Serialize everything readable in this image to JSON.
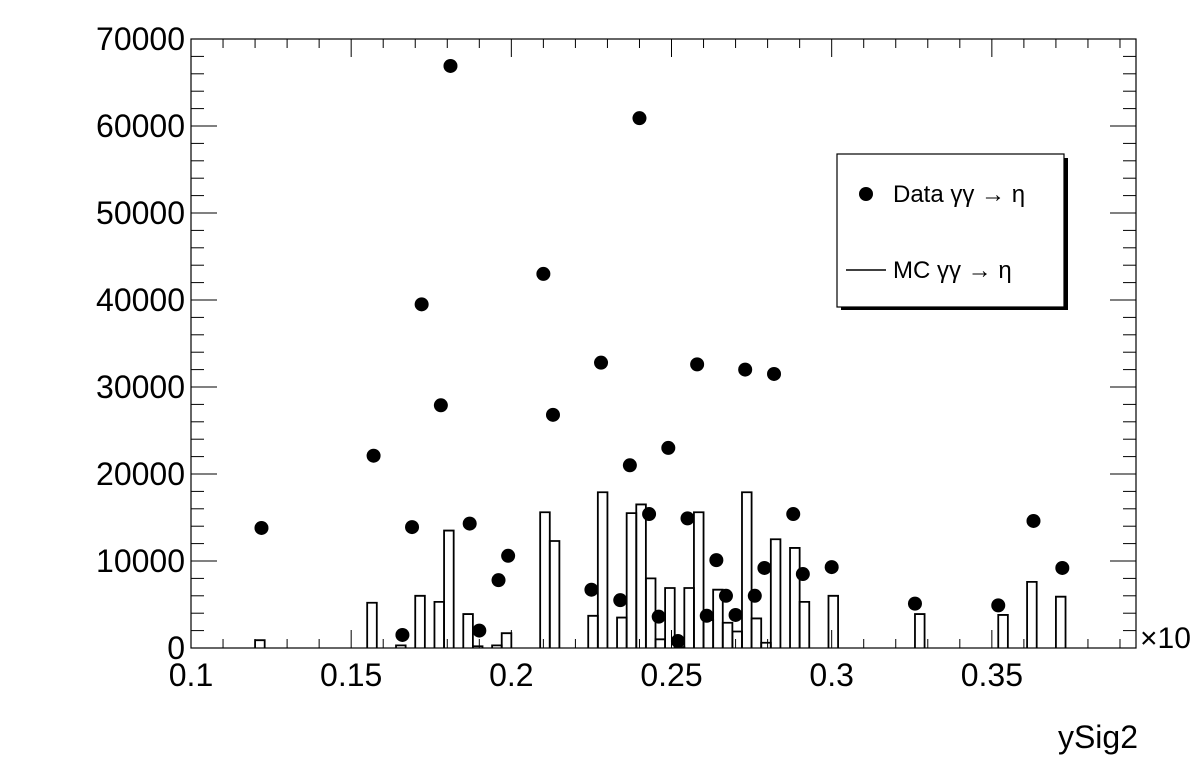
{
  "chart_data": {
    "type": "scatter",
    "title": "",
    "xlabel": "ySig2",
    "ylabel": "",
    "xlim": [
      0.1,
      0.395
    ],
    "ylim": [
      0,
      70000
    ],
    "x_exponent_label": "×10",
    "x_ticks": [
      "0.1",
      "0.15",
      "0.2",
      "0.25",
      "0.3",
      "0.35"
    ],
    "y_ticks": [
      "0",
      "10000",
      "20000",
      "30000",
      "40000",
      "50000",
      "60000",
      "70000"
    ],
    "legend": {
      "position": "top-right",
      "entries": [
        "Data γγ → η",
        "MC γγ → η"
      ]
    },
    "series": [
      {
        "name": "Data γγ → η",
        "style": "markers",
        "color": "#000000",
        "points": [
          [
            0.122,
            13800
          ],
          [
            0.157,
            22100
          ],
          [
            0.166,
            1500
          ],
          [
            0.169,
            13900
          ],
          [
            0.172,
            39500
          ],
          [
            0.178,
            27900
          ],
          [
            0.181,
            66900
          ],
          [
            0.187,
            14300
          ],
          [
            0.19,
            2000
          ],
          [
            0.196,
            7800
          ],
          [
            0.199,
            10600
          ],
          [
            0.21,
            43000
          ],
          [
            0.213,
            26800
          ],
          [
            0.225,
            6700
          ],
          [
            0.228,
            32800
          ],
          [
            0.234,
            5500
          ],
          [
            0.237,
            21000
          ],
          [
            0.24,
            60900
          ],
          [
            0.243,
            15400
          ],
          [
            0.246,
            3600
          ],
          [
            0.249,
            23000
          ],
          [
            0.252,
            800
          ],
          [
            0.255,
            14900
          ],
          [
            0.258,
            32600
          ],
          [
            0.261,
            3700
          ],
          [
            0.264,
            10100
          ],
          [
            0.267,
            6000
          ],
          [
            0.27,
            3800
          ],
          [
            0.273,
            32000
          ],
          [
            0.276,
            6000
          ],
          [
            0.279,
            9200
          ],
          [
            0.282,
            31500
          ],
          [
            0.288,
            15400
          ],
          [
            0.291,
            8500
          ],
          [
            0.3,
            9300
          ],
          [
            0.326,
            5100
          ],
          [
            0.352,
            4900
          ],
          [
            0.363,
            14600
          ],
          [
            0.372,
            9200
          ]
        ]
      },
      {
        "name": "MC γγ → η",
        "style": "step",
        "color": "#000000",
        "bin_width": 0.003,
        "bins": [
          [
            0.12,
            900
          ],
          [
            0.155,
            5200
          ],
          [
            0.164,
            300
          ],
          [
            0.17,
            6000
          ],
          [
            0.176,
            5300
          ],
          [
            0.179,
            13500
          ],
          [
            0.185,
            3900
          ],
          [
            0.188,
            200
          ],
          [
            0.194,
            300
          ],
          [
            0.197,
            1700
          ],
          [
            0.209,
            15600
          ],
          [
            0.212,
            12300
          ],
          [
            0.224,
            3700
          ],
          [
            0.227,
            17900
          ],
          [
            0.233,
            3500
          ],
          [
            0.236,
            15500
          ],
          [
            0.239,
            16500
          ],
          [
            0.242,
            8000
          ],
          [
            0.245,
            1000
          ],
          [
            0.248,
            6900
          ],
          [
            0.251,
            100
          ],
          [
            0.254,
            6900
          ],
          [
            0.257,
            15600
          ],
          [
            0.26,
            3200
          ],
          [
            0.263,
            6700
          ],
          [
            0.266,
            2900
          ],
          [
            0.269,
            1900
          ],
          [
            0.272,
            17900
          ],
          [
            0.275,
            3400
          ],
          [
            0.278,
            600
          ],
          [
            0.281,
            12500
          ],
          [
            0.287,
            11500
          ],
          [
            0.29,
            5300
          ],
          [
            0.299,
            6000
          ],
          [
            0.326,
            3900
          ],
          [
            0.352,
            3800
          ],
          [
            0.361,
            7600
          ],
          [
            0.37,
            5900
          ]
        ]
      }
    ]
  }
}
